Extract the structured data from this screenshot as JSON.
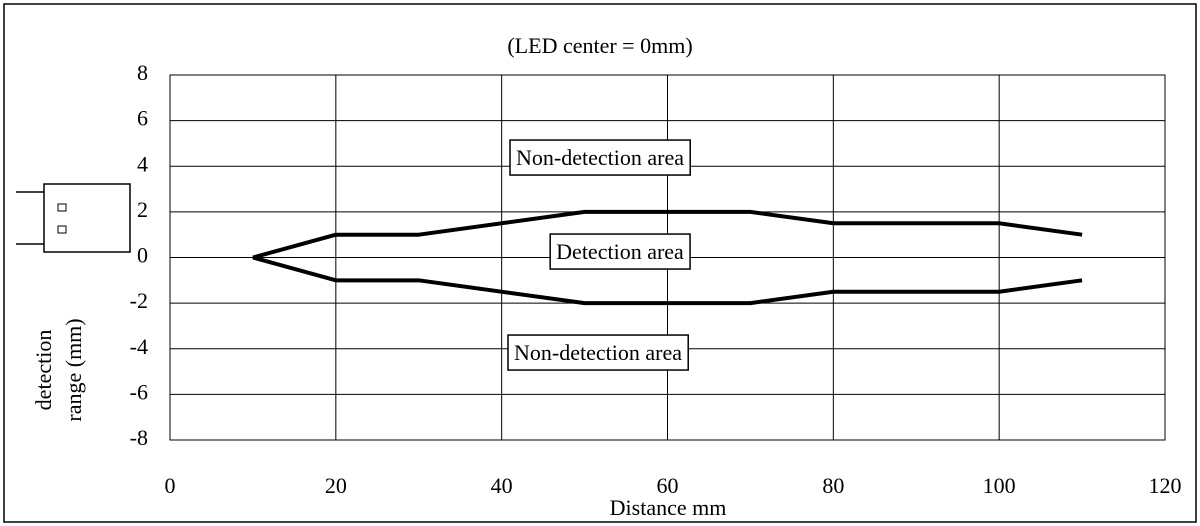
{
  "chart_data": {
    "type": "line",
    "title": "(LED center = 0mm)",
    "x_label": "Distance mm",
    "y_label": [
      "detection",
      "range (mm)"
    ],
    "annotations": [
      "Non-detection area",
      "Detection area",
      "Non-detection area"
    ],
    "x": [
      10,
      20,
      30,
      50,
      70,
      80,
      100,
      110
    ],
    "series": [
      {
        "color": "#000000",
        "values": [
          0,
          1,
          1,
          2,
          2,
          1.5,
          1.5,
          1
        ]
      },
      {
        "color": "#000000",
        "values": [
          0,
          -1,
          -1,
          -2,
          -2,
          -1.5,
          -1.5,
          -1
        ]
      }
    ],
    "xlim": [
      0,
      120
    ],
    "xticks": [
      0,
      20,
      40,
      60,
      80,
      100,
      120
    ],
    "ylim": [
      -8,
      8
    ],
    "yticks": [
      -8,
      -6,
      -4,
      -2,
      0,
      2,
      4,
      6,
      8
    ],
    "grid": true
  }
}
